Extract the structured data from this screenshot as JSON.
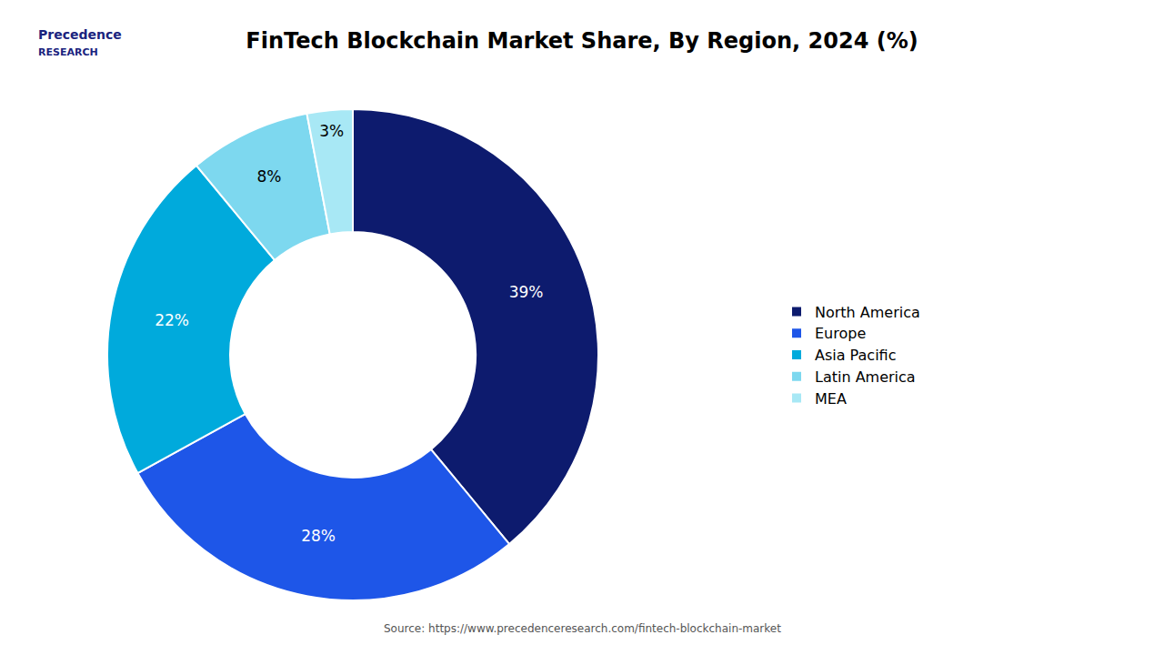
{
  "chart_data": {
    "type": "donut",
    "title": "FinTech Blockchain Market Share, By Region, 2024 (%)",
    "categories": [
      "North America",
      "Europe",
      "Asia Pacific",
      "Latin America",
      "MEA"
    ],
    "values": [
      39,
      28,
      22,
      8,
      3
    ],
    "value_labels": [
      "39%",
      "28%",
      "22%",
      "8%",
      "3%"
    ],
    "colors": [
      "#0d1b6e",
      "#1e56e8",
      "#00aadc",
      "#7dd8ef",
      "#a8e8f5"
    ],
    "data_labels": true,
    "legend": "right",
    "annotations": [
      "Precedence",
      "RESEARCH",
      "Source: https://www.precedenceresearch.com/fintech-blockchain-market"
    ]
  }
}
